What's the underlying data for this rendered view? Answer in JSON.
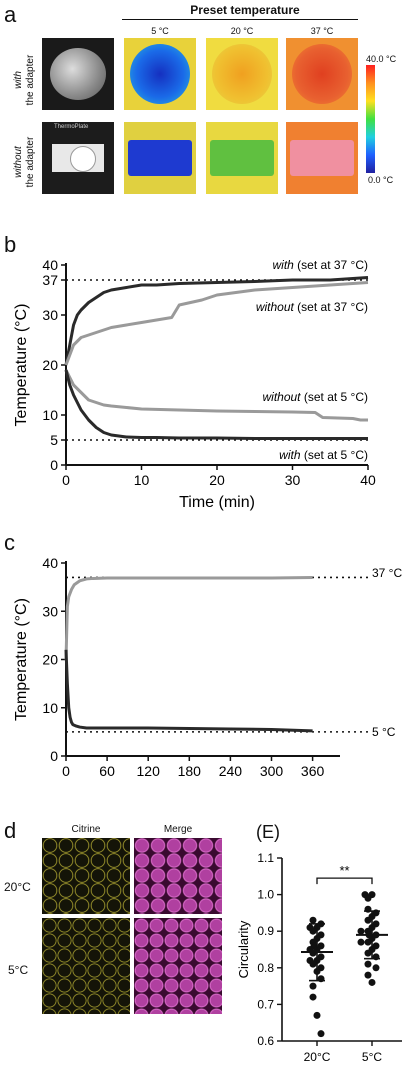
{
  "panel_a": {
    "label": "a",
    "header": "Preset temperature",
    "columns": [
      "5 °C",
      "20 °C",
      "37 °C"
    ],
    "rows": [
      {
        "emph": "with",
        "rest": "the adapter"
      },
      {
        "emph": "without",
        "rest": "the adapter"
      }
    ],
    "colorbar": {
      "max_label": "40.0 °C",
      "min_label": "0.0 °C"
    },
    "photo_label": "ThermoPlate"
  },
  "panel_b": {
    "label": "b"
  },
  "panel_c": {
    "label": "c"
  },
  "panel_d": {
    "label": "d",
    "columns": [
      "Citrine",
      "Merge"
    ],
    "rows": [
      "20°C",
      "5°C"
    ]
  },
  "panel_e": {
    "label": "(E)"
  },
  "colors": {
    "dark": "#2a2a2a",
    "gray": "#9a9a9a",
    "pink": "#b040a0",
    "yellow": "#b8b030"
  },
  "chart_data": [
    {
      "id": "b",
      "type": "line",
      "xlabel": "Time (min)",
      "ylabel": "Temperature (°C)",
      "xlim": [
        0,
        40
      ],
      "ylim": [
        0,
        40
      ],
      "xticks": [
        0,
        10,
        20,
        30,
        40
      ],
      "yticks": [
        0,
        5,
        10,
        20,
        30,
        37,
        40
      ],
      "reference_lines": [
        37,
        5
      ],
      "annotations": [
        {
          "emph": "with",
          "rest": " (set at 37 °C)"
        },
        {
          "emph": "without",
          "rest": " (set at 37 °C)"
        },
        {
          "emph": "without",
          "rest": " (set at 5 °C)"
        },
        {
          "emph": "with",
          "rest": " (set at 5 °C)"
        }
      ],
      "series": [
        {
          "color": "dark",
          "x": [
            0,
            0.5,
            1,
            1.5,
            2,
            3,
            4,
            5,
            6,
            8,
            10,
            12,
            15,
            20,
            25,
            30,
            35,
            38,
            40
          ],
          "y": [
            20,
            24,
            28,
            30,
            31,
            32.5,
            33.5,
            34.5,
            35,
            35.5,
            36,
            36,
            36.3,
            36.5,
            36.7,
            37,
            37,
            37.3,
            37.5
          ]
        },
        {
          "color": "gray",
          "x": [
            0,
            0.5,
            1,
            2,
            3,
            4,
            5,
            6,
            8,
            10,
            12,
            14,
            15,
            18,
            20,
            25,
            30,
            35,
            40
          ],
          "y": [
            20,
            22,
            24,
            25.5,
            26,
            26.5,
            27,
            27.5,
            28,
            28.5,
            29,
            29.5,
            32,
            33,
            34,
            35,
            35.5,
            36,
            36.5
          ]
        },
        {
          "color": "gray",
          "x": [
            0,
            1,
            2,
            3,
            4,
            5,
            6,
            8,
            10,
            15,
            20,
            25,
            30,
            33,
            34,
            38,
            39,
            40
          ],
          "y": [
            19,
            16,
            14.5,
            13,
            12.5,
            12,
            11.8,
            11.5,
            11.2,
            11,
            10.8,
            10.7,
            10.6,
            10.5,
            9.5,
            9.3,
            9,
            9
          ]
        },
        {
          "color": "dark",
          "x": [
            0,
            0.5,
            1,
            2,
            3,
            4,
            5,
            6,
            8,
            10,
            12,
            15,
            20,
            25,
            30,
            35,
            40
          ],
          "y": [
            19,
            16,
            14,
            11,
            9,
            7.5,
            6.5,
            6,
            5.6,
            5.5,
            5.5,
            5.4,
            5.4,
            5.3,
            5.3,
            5.3,
            5.3
          ]
        }
      ]
    },
    {
      "id": "c",
      "type": "line",
      "xlabel": "Time (min)",
      "ylabel": "Temperature (°C)",
      "xlim": [
        0,
        400
      ],
      "ylim": [
        0,
        40
      ],
      "xticks": [
        0,
        60,
        120,
        180,
        240,
        300,
        360
      ],
      "yticks": [
        0,
        10,
        20,
        30,
        40
      ],
      "reference_lines": [
        37,
        5
      ],
      "annotations": [
        "37 °C",
        "5 °C"
      ],
      "series": [
        {
          "color": "gray",
          "x": [
            0,
            2,
            4,
            8,
            12,
            20,
            30,
            40,
            60,
            120,
            180,
            240,
            300,
            360
          ],
          "y": [
            20,
            31,
            33,
            34.5,
            35.5,
            36.3,
            36.7,
            36.8,
            36.9,
            36.9,
            36.9,
            36.9,
            36.9,
            37
          ]
        },
        {
          "color": "dark",
          "x": [
            0,
            2,
            4,
            6,
            8,
            10,
            15,
            20,
            30,
            60,
            120,
            180,
            240,
            300,
            360
          ],
          "y": [
            22,
            15,
            10,
            8,
            7,
            6.5,
            6.2,
            6,
            5.8,
            5.8,
            5.8,
            5.7,
            5.6,
            5.5,
            5.2
          ]
        }
      ]
    },
    {
      "id": "e",
      "type": "scatter",
      "ylabel": "Circularity",
      "ylim": [
        0.6,
        1.1
      ],
      "yticks": [
        0.6,
        0.7,
        0.8,
        0.9,
        1.0,
        1.1
      ],
      "categories": [
        "20°C",
        "5°C"
      ],
      "significance": "**",
      "groups": [
        {
          "category": "20°C",
          "mean": 0.843,
          "sd_low": 0.765,
          "sd_high": 0.92,
          "values": [
            0.93,
            0.92,
            0.91,
            0.91,
            0.9,
            0.89,
            0.88,
            0.87,
            0.86,
            0.86,
            0.85,
            0.85,
            0.84,
            0.83,
            0.82,
            0.82,
            0.81,
            0.8,
            0.79,
            0.77,
            0.75,
            0.72,
            0.67,
            0.62
          ]
        },
        {
          "category": "5°C",
          "mean": 0.89,
          "sd_low": 0.825,
          "sd_high": 0.955,
          "values": [
            1.0,
            1.0,
            0.99,
            0.96,
            0.95,
            0.94,
            0.93,
            0.92,
            0.91,
            0.9,
            0.9,
            0.89,
            0.89,
            0.88,
            0.87,
            0.87,
            0.86,
            0.85,
            0.84,
            0.83,
            0.81,
            0.8,
            0.78,
            0.76
          ]
        }
      ]
    }
  ]
}
